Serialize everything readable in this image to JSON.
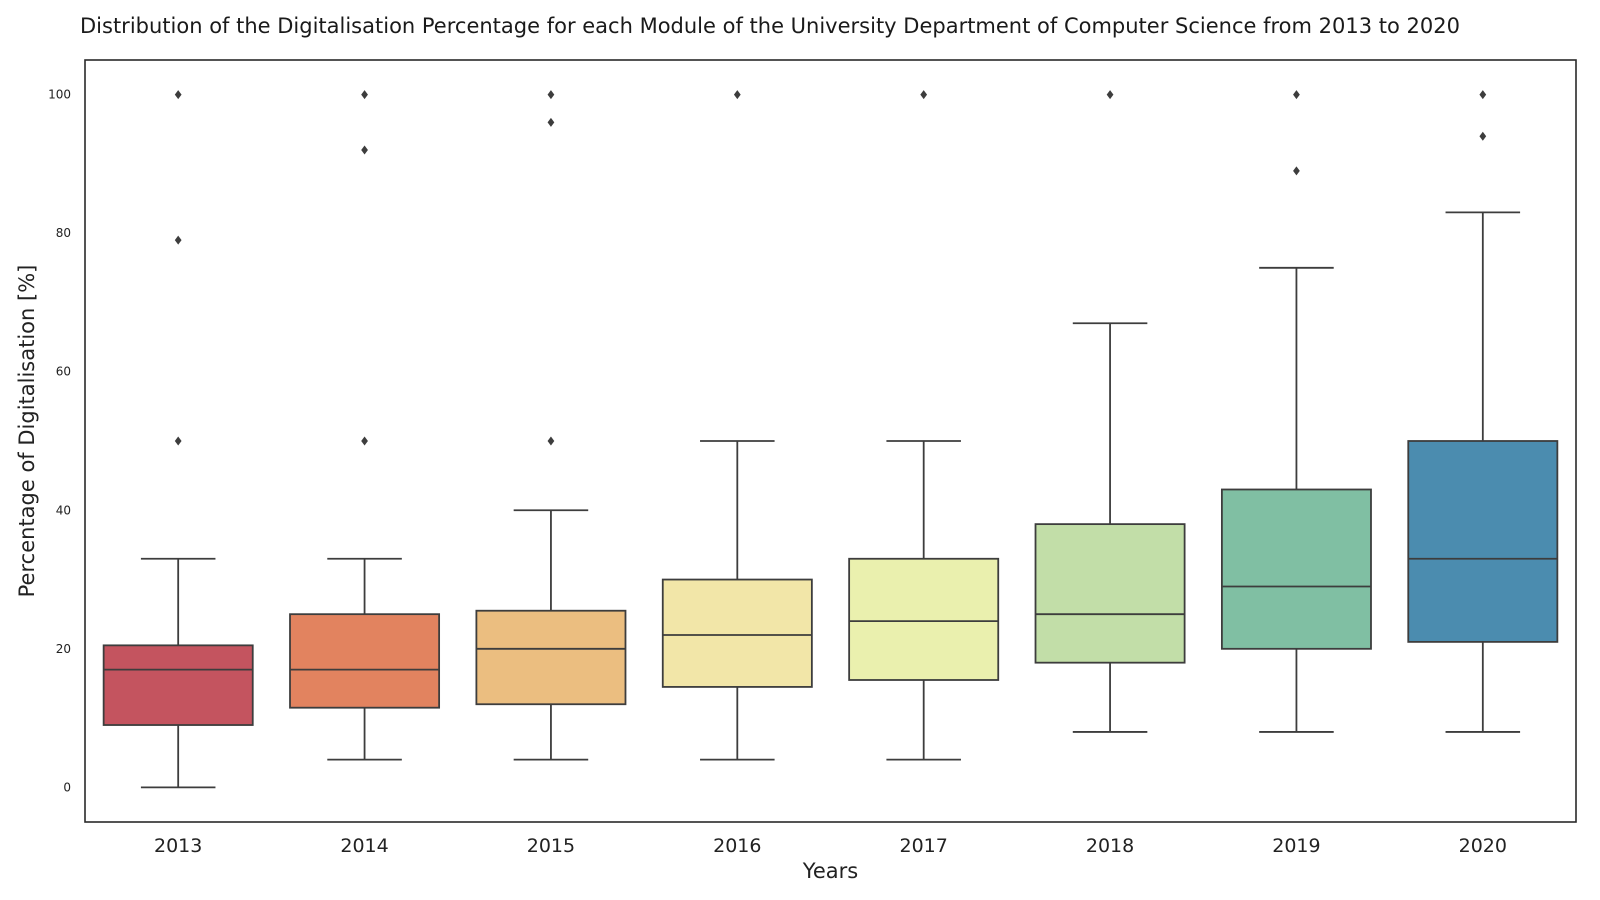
{
  "chart_data": {
    "type": "box",
    "title": "Distribution of the Digitalisation Percentage for each Module of the University Department of Computer Science from 2013 to 2020",
    "xlabel": "Years",
    "ylabel": "Percentage of Digitalisation [%]",
    "ylim": [
      -5,
      105
    ],
    "yticks": [
      0,
      20,
      40,
      60,
      80,
      100
    ],
    "grid": false,
    "categories": [
      "2013",
      "2014",
      "2015",
      "2016",
      "2017",
      "2018",
      "2019",
      "2020"
    ],
    "boxes": [
      {
        "category": "2013",
        "whisker_low": 0,
        "q1": 9,
        "median": 17,
        "q3": 20.5,
        "whisker_high": 33,
        "outliers": [
          50,
          79,
          100
        ],
        "color": "#c4545f"
      },
      {
        "category": "2014",
        "whisker_low": 4,
        "q1": 11.5,
        "median": 17,
        "q3": 25,
        "whisker_high": 33,
        "outliers": [
          50,
          92,
          100
        ],
        "color": "#e2835f"
      },
      {
        "category": "2015",
        "whisker_low": 4,
        "q1": 12,
        "median": 20,
        "q3": 25.5,
        "whisker_high": 40,
        "outliers": [
          50,
          96,
          100
        ],
        "color": "#ebbe80"
      },
      {
        "category": "2016",
        "whisker_low": 4,
        "q1": 14.5,
        "median": 22,
        "q3": 30,
        "whisker_high": 50,
        "outliers": [
          100
        ],
        "color": "#f2e6a8"
      },
      {
        "category": "2017",
        "whisker_low": 4,
        "q1": 15.5,
        "median": 24,
        "q3": 33,
        "whisker_high": 50,
        "outliers": [
          100
        ],
        "color": "#eaf0ae"
      },
      {
        "category": "2018",
        "whisker_low": 8,
        "q1": 18,
        "median": 25,
        "q3": 38,
        "whisker_high": 67,
        "outliers": [
          100
        ],
        "color": "#c2dea8"
      },
      {
        "category": "2019",
        "whisker_low": 8,
        "q1": 20,
        "median": 29,
        "q3": 43,
        "whisker_high": 75,
        "outliers": [
          89,
          100
        ],
        "color": "#80bfa3"
      },
      {
        "category": "2020",
        "whisker_low": 8,
        "q1": 21,
        "median": 33,
        "q3": 50,
        "whisker_high": 83,
        "outliers": [
          94,
          100
        ],
        "color": "#4b8caf"
      }
    ],
    "line_color": "#3d3d3d"
  }
}
